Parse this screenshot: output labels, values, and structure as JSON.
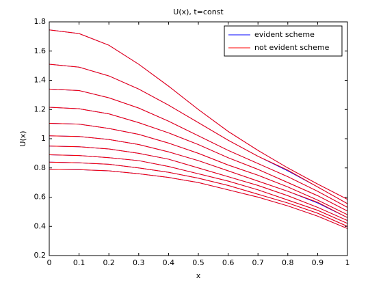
{
  "chart_data": {
    "type": "line",
    "title": "U(x), t=const",
    "x_label": "x",
    "y_label": "U(x)",
    "x": [
      0,
      0.1,
      0.2,
      0.3,
      0.4,
      0.5,
      0.6,
      0.7,
      0.8,
      0.9,
      1
    ],
    "series": [
      {
        "name": "evident scheme",
        "color": "#0000ff",
        "lines": [
          [
            1.745,
            1.72,
            1.64,
            1.51,
            1.36,
            1.2,
            1.05,
            0.92,
            0.8,
            0.69,
            0.585
          ],
          [
            1.51,
            1.49,
            1.43,
            1.34,
            1.23,
            1.11,
            0.99,
            0.88,
            0.78,
            0.67,
            0.555
          ],
          [
            1.34,
            1.33,
            1.28,
            1.21,
            1.12,
            1.02,
            0.92,
            0.83,
            0.74,
            0.64,
            0.53
          ],
          [
            1.215,
            1.205,
            1.17,
            1.11,
            1.04,
            0.96,
            0.87,
            0.79,
            0.7,
            0.61,
            0.505
          ],
          [
            1.105,
            1.1,
            1.07,
            1.03,
            0.97,
            0.9,
            0.82,
            0.75,
            0.67,
            0.58,
            0.48
          ],
          [
            1.02,
            1.015,
            0.995,
            0.96,
            0.91,
            0.85,
            0.78,
            0.71,
            0.64,
            0.56,
            0.46
          ],
          [
            0.95,
            0.945,
            0.93,
            0.9,
            0.86,
            0.8,
            0.74,
            0.68,
            0.61,
            0.53,
            0.44
          ],
          [
            0.89,
            0.885,
            0.87,
            0.85,
            0.81,
            0.76,
            0.71,
            0.65,
            0.58,
            0.51,
            0.42
          ],
          [
            0.84,
            0.835,
            0.825,
            0.8,
            0.77,
            0.73,
            0.68,
            0.62,
            0.56,
            0.49,
            0.4
          ],
          [
            0.79,
            0.788,
            0.78,
            0.76,
            0.735,
            0.7,
            0.65,
            0.6,
            0.54,
            0.47,
            0.385
          ]
        ]
      },
      {
        "name": "not evident scheme",
        "color": "#ff0000",
        "lines": [
          [
            1.745,
            1.72,
            1.64,
            1.51,
            1.36,
            1.2,
            1.05,
            0.92,
            0.8,
            0.69,
            0.585
          ],
          [
            1.51,
            1.49,
            1.43,
            1.34,
            1.23,
            1.11,
            0.99,
            0.88,
            0.785,
            0.67,
            0.555
          ],
          [
            1.34,
            1.33,
            1.28,
            1.21,
            1.12,
            1.02,
            0.92,
            0.83,
            0.74,
            0.64,
            0.53
          ],
          [
            1.215,
            1.205,
            1.17,
            1.11,
            1.04,
            0.96,
            0.87,
            0.79,
            0.7,
            0.61,
            0.505
          ],
          [
            1.105,
            1.1,
            1.07,
            1.03,
            0.97,
            0.9,
            0.82,
            0.75,
            0.67,
            0.58,
            0.48
          ],
          [
            1.02,
            1.015,
            0.995,
            0.96,
            0.91,
            0.85,
            0.78,
            0.71,
            0.64,
            0.565,
            0.46
          ],
          [
            0.95,
            0.945,
            0.93,
            0.9,
            0.86,
            0.8,
            0.74,
            0.68,
            0.61,
            0.53,
            0.44
          ],
          [
            0.89,
            0.885,
            0.87,
            0.85,
            0.81,
            0.76,
            0.71,
            0.65,
            0.58,
            0.51,
            0.42
          ],
          [
            0.84,
            0.835,
            0.825,
            0.8,
            0.77,
            0.73,
            0.68,
            0.62,
            0.56,
            0.49,
            0.4
          ],
          [
            0.79,
            0.788,
            0.78,
            0.76,
            0.735,
            0.7,
            0.65,
            0.6,
            0.54,
            0.47,
            0.385
          ]
        ]
      }
    ],
    "xlim": [
      0,
      1
    ],
    "xticks": [
      0,
      0.1,
      0.2,
      0.3,
      0.4,
      0.5,
      0.6,
      0.7,
      0.8,
      0.9,
      1
    ],
    "ylim": [
      0.2,
      1.8
    ],
    "yticks": [
      0.2,
      0.4,
      0.6,
      0.8,
      1,
      1.2,
      1.4,
      1.6,
      1.8
    ],
    "grid": false,
    "legend": "northeast"
  }
}
